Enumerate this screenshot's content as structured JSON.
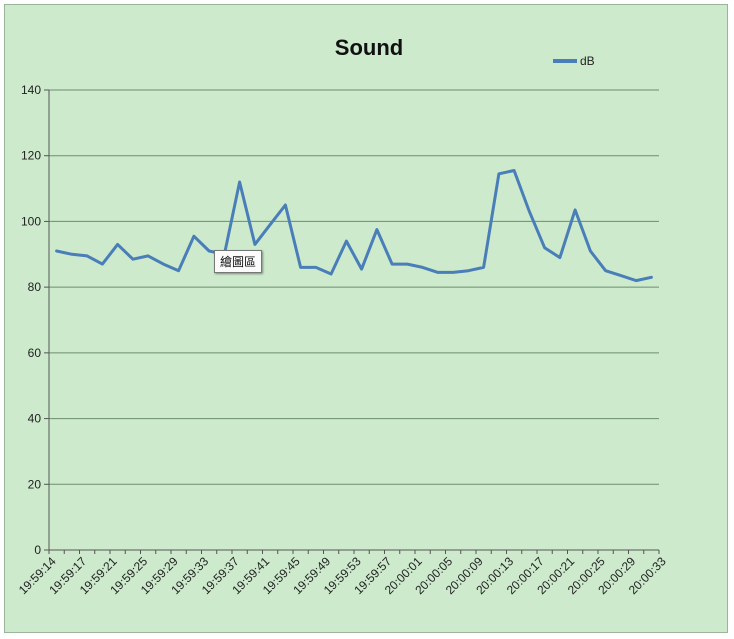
{
  "chart_data": {
    "type": "line",
    "title": "Sound",
    "legend": {
      "position": "top-right"
    },
    "ylim": [
      0,
      140
    ],
    "yticks": [
      0,
      20,
      40,
      60,
      80,
      100,
      120,
      140
    ],
    "grid": true,
    "x_tick_labels": [
      "19:59:14",
      "19:59:17",
      "19:59:21",
      "19:59:25",
      "19:59:29",
      "19:59:33",
      "19:59:37",
      "19:59:41",
      "19:59:45",
      "19:59:49",
      "19:59:53",
      "19:59:57",
      "20:00:01",
      "20:00:05",
      "20:00:09",
      "20:00:13",
      "20:00:17",
      "20:00:21",
      "20:00:25",
      "20:00:29",
      "20:00:33"
    ],
    "series": [
      {
        "name": "dB",
        "color": "#4a7eb8",
        "values": [
          91,
          90,
          89.5,
          87,
          93,
          88.5,
          89.5,
          87,
          85,
          95.5,
          91,
          90,
          112,
          93,
          99,
          105,
          86,
          86,
          84,
          94,
          85.5,
          97.5,
          87,
          87,
          86,
          84.5,
          84.5,
          85,
          86,
          114.5,
          115.5,
          103,
          92,
          89,
          103.5,
          91,
          85,
          83.5,
          82,
          83
        ]
      }
    ]
  },
  "tooltip": {
    "text": "繪圖區"
  }
}
